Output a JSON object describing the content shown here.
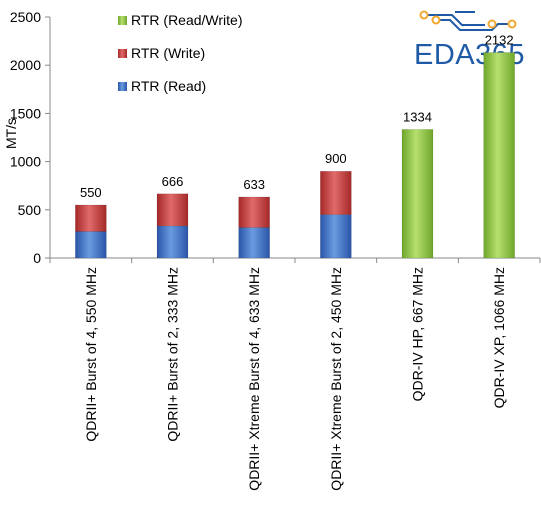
{
  "chart_data": {
    "type": "bar",
    "stacked": true,
    "categories": [
      "QDRII+ Burst of 4, 550 MHz",
      "QDRII+ Burst of 2, 333 MHz",
      "QDRII+ Xtreme Burst of 4, 633 MHz",
      "QDRII+ Xtreme Burst of 2, 450 MHz",
      "QDR-IV HP, 667 MHz",
      "QDR-IV XP, 1066 MHz"
    ],
    "series": [
      {
        "name": "RTR (Read)",
        "color": "#3a6fc8",
        "values": [
          275,
          333,
          316,
          450,
          null,
          null
        ]
      },
      {
        "name": "RTR (Write)",
        "color": "#c93a3a",
        "values": [
          275,
          333,
          317,
          450,
          null,
          null
        ]
      },
      {
        "name": "RTR (Read/Write)",
        "color": "#8dc63f",
        "values": [
          null,
          null,
          null,
          null,
          1334,
          2132
        ]
      }
    ],
    "totals": [
      "550",
      "666",
      "633",
      "900",
      "1334",
      "2132"
    ],
    "ylabel": "MT/s",
    "xlabel": "",
    "ylim": [
      0,
      2500
    ],
    "yticks": [
      "0",
      "500",
      "1000",
      "1500",
      "2000",
      "2500"
    ],
    "grid": false,
    "legend_position": "top-left"
  },
  "logo": {
    "text": "EDA365",
    "color": "#1f5aa6",
    "accent": "#f0a830"
  }
}
